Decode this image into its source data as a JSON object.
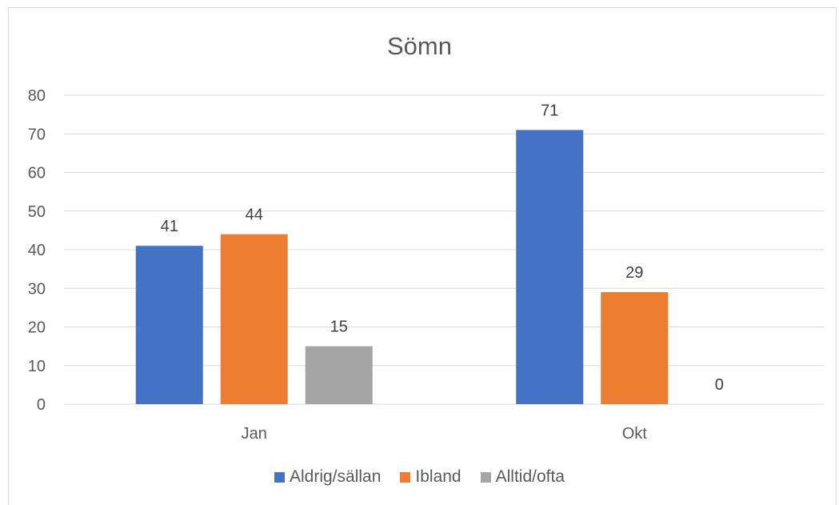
{
  "chart_data": {
    "type": "bar",
    "title": "Sömn",
    "categories": [
      "Jan",
      "Okt"
    ],
    "series": [
      {
        "name": "Aldrig/sällan",
        "values": [
          41,
          71
        ],
        "color": "#4472c4"
      },
      {
        "name": "Ibland",
        "values": [
          44,
          29
        ],
        "color": "#ed7d31"
      },
      {
        "name": "Alltid/ofta",
        "values": [
          15,
          0
        ],
        "color": "#a5a5a5"
      }
    ],
    "ylim": [
      0,
      80
    ],
    "yticks": [
      "0",
      "10",
      "20",
      "30",
      "40",
      "50",
      "60",
      "70",
      "80"
    ],
    "xlabel": "",
    "ylabel": "",
    "grid": true,
    "legend_position": "bottom"
  }
}
